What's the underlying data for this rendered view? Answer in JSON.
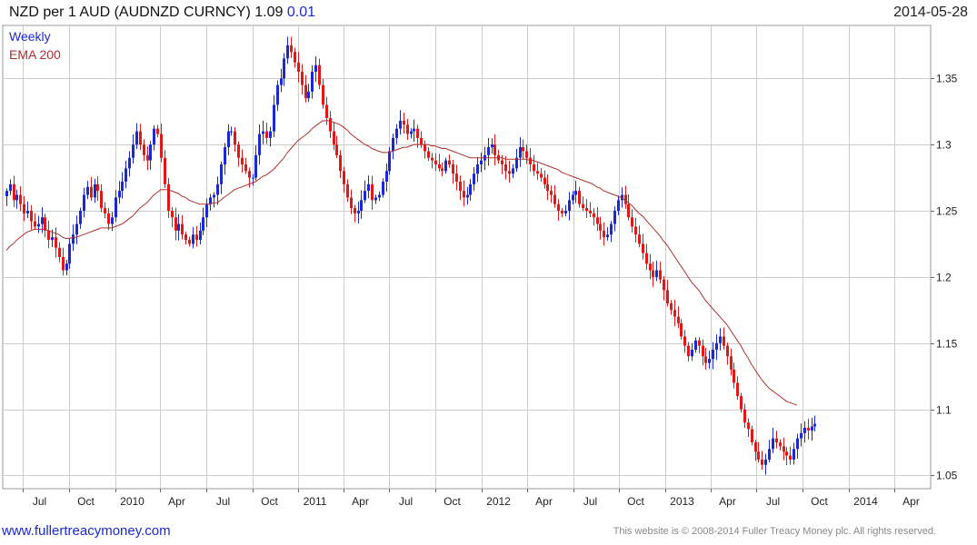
{
  "header": {
    "title": "NZD per 1 AUD (AUDNZD CURNCY) 1.09",
    "change": "0.01",
    "date": "2014-05-28"
  },
  "legend": {
    "weekly": "Weekly",
    "ema": "EMA 200"
  },
  "footer": {
    "site": "www.fullertreacymoney.com",
    "copyright": "This website is © 2008-2014 Fuller Treacy Money plc. All rights reserved."
  },
  "colors": {
    "up": "#1a2ad0",
    "down": "#e01818",
    "ema": "#b03030",
    "grid": "#cccccc"
  },
  "chart_data": {
    "type": "candlestick",
    "ylim": [
      1.04,
      1.39
    ],
    "yticks": [
      1.05,
      1.1,
      1.15,
      1.2,
      1.25,
      1.3,
      1.35
    ],
    "xlim": [
      "2009-05-22",
      "2014-06-13"
    ],
    "xticks": [
      {
        "label": "Jul",
        "date": "2009-07-01"
      },
      {
        "label": "Oct",
        "date": "2009-10-01"
      },
      {
        "label": "2010",
        "date": "2010-01-01"
      },
      {
        "label": "Apr",
        "date": "2010-04-01"
      },
      {
        "label": "Jul",
        "date": "2010-07-01"
      },
      {
        "label": "Oct",
        "date": "2010-10-01"
      },
      {
        "label": "2011",
        "date": "2011-01-01"
      },
      {
        "label": "Apr",
        "date": "2011-04-01"
      },
      {
        "label": "Jul",
        "date": "2011-07-01"
      },
      {
        "label": "Oct",
        "date": "2011-10-01"
      },
      {
        "label": "2012",
        "date": "2012-01-01"
      },
      {
        "label": "Apr",
        "date": "2012-04-01"
      },
      {
        "label": "Jul",
        "date": "2012-07-01"
      },
      {
        "label": "Oct",
        "date": "2012-10-01"
      },
      {
        "label": "2013",
        "date": "2013-01-01"
      },
      {
        "label": "Apr",
        "date": "2013-04-01"
      },
      {
        "label": "Jul",
        "date": "2013-07-01"
      },
      {
        "label": "Oct",
        "date": "2013-10-01"
      },
      {
        "label": "2014",
        "date": "2014-01-01"
      },
      {
        "label": "Apr",
        "date": "2014-04-01"
      }
    ],
    "series": [
      {
        "name": "Weekly",
        "first_date": "2009-05-29",
        "interval_days": 7,
        "closes": [
          1.265,
          1.27,
          1.258,
          1.262,
          1.255,
          1.248,
          1.25,
          1.242,
          1.238,
          1.24,
          1.245,
          1.235,
          1.228,
          1.23,
          1.222,
          1.215,
          1.205,
          1.21,
          1.225,
          1.232,
          1.24,
          1.25,
          1.262,
          1.268,
          1.26,
          1.27,
          1.265,
          1.252,
          1.248,
          1.24,
          1.245,
          1.26,
          1.265,
          1.272,
          1.282,
          1.29,
          1.3,
          1.31,
          1.3,
          1.292,
          1.288,
          1.3,
          1.312,
          1.308,
          1.29,
          1.27,
          1.25,
          1.245,
          1.235,
          1.24,
          1.232,
          1.228,
          1.225,
          1.232,
          1.228,
          1.235,
          1.245,
          1.255,
          1.26,
          1.262,
          1.27,
          1.285,
          1.298,
          1.31,
          1.31,
          1.3,
          1.29,
          1.285,
          1.28,
          1.275,
          1.275,
          1.292,
          1.308,
          1.31,
          1.305,
          1.31,
          1.33,
          1.345,
          1.35,
          1.365,
          1.375,
          1.37,
          1.362,
          1.355,
          1.345,
          1.335,
          1.34,
          1.355,
          1.36,
          1.345,
          1.33,
          1.32,
          1.31,
          1.3,
          1.292,
          1.28,
          1.27,
          1.26,
          1.252,
          1.248,
          1.25,
          1.258,
          1.265,
          1.27,
          1.258,
          1.26,
          1.262,
          1.272,
          1.28,
          1.295,
          1.305,
          1.312,
          1.318,
          1.315,
          1.308,
          1.31,
          1.312,
          1.305,
          1.3,
          1.295,
          1.29,
          1.288,
          1.285,
          1.282,
          1.28,
          1.288,
          1.285,
          1.278,
          1.272,
          1.265,
          1.26,
          1.262,
          1.27,
          1.278,
          1.285,
          1.288,
          1.292,
          1.298,
          1.3,
          1.292,
          1.288,
          1.285,
          1.28,
          1.278,
          1.282,
          1.29,
          1.298,
          1.295,
          1.29,
          1.285,
          1.28,
          1.278,
          1.275,
          1.27,
          1.265,
          1.262,
          1.255,
          1.25,
          1.248,
          1.25,
          1.258,
          1.262,
          1.265,
          1.255,
          1.252,
          1.25,
          1.248,
          1.245,
          1.24,
          1.235,
          1.23,
          1.232,
          1.24,
          1.25,
          1.258,
          1.262,
          1.255,
          1.245,
          1.238,
          1.232,
          1.225,
          1.218,
          1.21,
          1.205,
          1.2,
          1.205,
          1.198,
          1.19,
          1.18,
          1.175,
          1.17,
          1.165,
          1.155,
          1.148,
          1.14,
          1.145,
          1.152,
          1.148,
          1.14,
          1.135,
          1.138,
          1.145,
          1.15,
          1.155,
          1.148,
          1.14,
          1.13,
          1.12,
          1.11,
          1.1,
          1.09,
          1.085,
          1.075,
          1.068,
          1.062,
          1.058,
          1.062,
          1.07,
          1.078,
          1.075,
          1.072,
          1.068,
          1.065,
          1.062,
          1.07,
          1.078,
          1.082,
          1.086,
          1.084,
          1.087,
          1.089
        ],
        "ema200": [
          1.22,
          1.223,
          1.225,
          1.228,
          1.23,
          1.232,
          1.234,
          1.235,
          1.236,
          1.236,
          1.236,
          1.236,
          1.235,
          1.234,
          1.233,
          1.232,
          1.23,
          1.229,
          1.229,
          1.23,
          1.23,
          1.231,
          1.232,
          1.233,
          1.234,
          1.235,
          1.236,
          1.237,
          1.237,
          1.237,
          1.237,
          1.238,
          1.239,
          1.24,
          1.242,
          1.244,
          1.246,
          1.249,
          1.252,
          1.254,
          1.256,
          1.259,
          1.262,
          1.264,
          1.266,
          1.266,
          1.266,
          1.265,
          1.264,
          1.263,
          1.261,
          1.26,
          1.258,
          1.257,
          1.256,
          1.255,
          1.255,
          1.255,
          1.255,
          1.256,
          1.256,
          1.258,
          1.26,
          1.262,
          1.264,
          1.266,
          1.267,
          1.268,
          1.269,
          1.27,
          1.271,
          1.272,
          1.274,
          1.276,
          1.277,
          1.279,
          1.281,
          1.284,
          1.287,
          1.29,
          1.294,
          1.297,
          1.3,
          1.303,
          1.305,
          1.307,
          1.309,
          1.312,
          1.314,
          1.316,
          1.318,
          1.318,
          1.318,
          1.317,
          1.316,
          1.315,
          1.313,
          1.311,
          1.308,
          1.306,
          1.304,
          1.302,
          1.3,
          1.299,
          1.297,
          1.296,
          1.295,
          1.294,
          1.294,
          1.294,
          1.295,
          1.296,
          1.297,
          1.298,
          1.298,
          1.299,
          1.3,
          1.3,
          1.3,
          1.3,
          1.3,
          1.299,
          1.299,
          1.298,
          1.297,
          1.297,
          1.296,
          1.295,
          1.294,
          1.293,
          1.292,
          1.291,
          1.29,
          1.29,
          1.29,
          1.29,
          1.29,
          1.29,
          1.29,
          1.29,
          1.29,
          1.29,
          1.289,
          1.289,
          1.289,
          1.289,
          1.289,
          1.289,
          1.289,
          1.288,
          1.288,
          1.287,
          1.286,
          1.285,
          1.284,
          1.283,
          1.282,
          1.281,
          1.279,
          1.278,
          1.277,
          1.276,
          1.275,
          1.274,
          1.273,
          1.272,
          1.271,
          1.27,
          1.268,
          1.267,
          1.265,
          1.264,
          1.263,
          1.262,
          1.261,
          1.26,
          1.258,
          1.256,
          1.254,
          1.251,
          1.248,
          1.246,
          1.243,
          1.24,
          1.237,
          1.234,
          1.231,
          1.227,
          1.224,
          1.22,
          1.216,
          1.212,
          1.208,
          1.204,
          1.2,
          1.196,
          1.193,
          1.19,
          1.186,
          1.182,
          1.179,
          1.176,
          1.173,
          1.17,
          1.167,
          1.164,
          1.16,
          1.156,
          1.152,
          1.148,
          1.143,
          1.139,
          1.134,
          1.13,
          1.126,
          1.122,
          1.119,
          1.116,
          1.114,
          1.112,
          1.11,
          1.108,
          1.106,
          1.105,
          1.104,
          1.103
        ]
      }
    ]
  }
}
